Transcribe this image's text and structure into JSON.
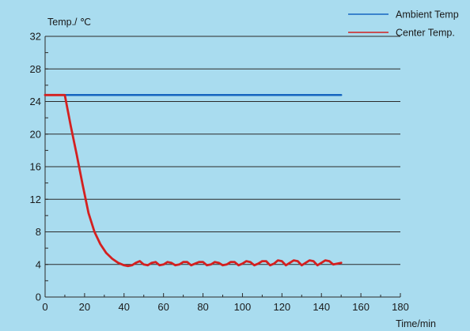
{
  "chart_data": {
    "type": "line",
    "ylabel": "Temp./ ℃",
    "xlabel": "Time/min",
    "xlim": [
      0,
      180
    ],
    "ylim": [
      0,
      32
    ],
    "x_ticks": [
      0,
      20,
      40,
      60,
      80,
      100,
      120,
      140,
      160,
      180
    ],
    "y_ticks": [
      0,
      4,
      8,
      12,
      16,
      20,
      24,
      28,
      32
    ],
    "grid": "horizontal",
    "legend_position": "top-right",
    "series": [
      {
        "name": "Ambient Temp",
        "color": "#1565c0",
        "x": [
          0,
          150
        ],
        "y": [
          24.8,
          24.8
        ]
      },
      {
        "name": "Center Temp.",
        "color": "#d42020",
        "x": [
          0,
          10,
          13,
          16,
          19,
          22,
          25,
          28,
          31,
          34,
          37,
          40,
          42,
          44,
          46,
          48,
          50,
          52,
          54,
          56,
          58,
          60,
          62,
          64,
          66,
          68,
          70,
          72,
          74,
          76,
          78,
          80,
          82,
          84,
          86,
          88,
          90,
          92,
          94,
          96,
          98,
          100,
          102,
          104,
          106,
          108,
          110,
          112,
          114,
          116,
          118,
          120,
          122,
          124,
          126,
          128,
          130,
          132,
          134,
          136,
          138,
          140,
          142,
          144,
          146,
          148,
          150
        ],
        "y": [
          24.8,
          24.8,
          21.0,
          17.5,
          13.8,
          10.3,
          8.0,
          6.5,
          5.4,
          4.7,
          4.2,
          3.9,
          3.8,
          3.9,
          4.2,
          4.4,
          4.0,
          3.9,
          4.2,
          4.3,
          3.9,
          4.0,
          4.3,
          4.2,
          3.9,
          4.0,
          4.3,
          4.3,
          3.9,
          4.1,
          4.3,
          4.3,
          3.9,
          4.0,
          4.3,
          4.2,
          3.9,
          4.0,
          4.3,
          4.3,
          3.9,
          4.1,
          4.4,
          4.3,
          3.9,
          4.1,
          4.4,
          4.4,
          3.9,
          4.1,
          4.5,
          4.4,
          3.9,
          4.2,
          4.5,
          4.4,
          3.9,
          4.2,
          4.5,
          4.4,
          3.9,
          4.2,
          4.5,
          4.4,
          4.0,
          4.1,
          4.2
        ]
      }
    ]
  }
}
